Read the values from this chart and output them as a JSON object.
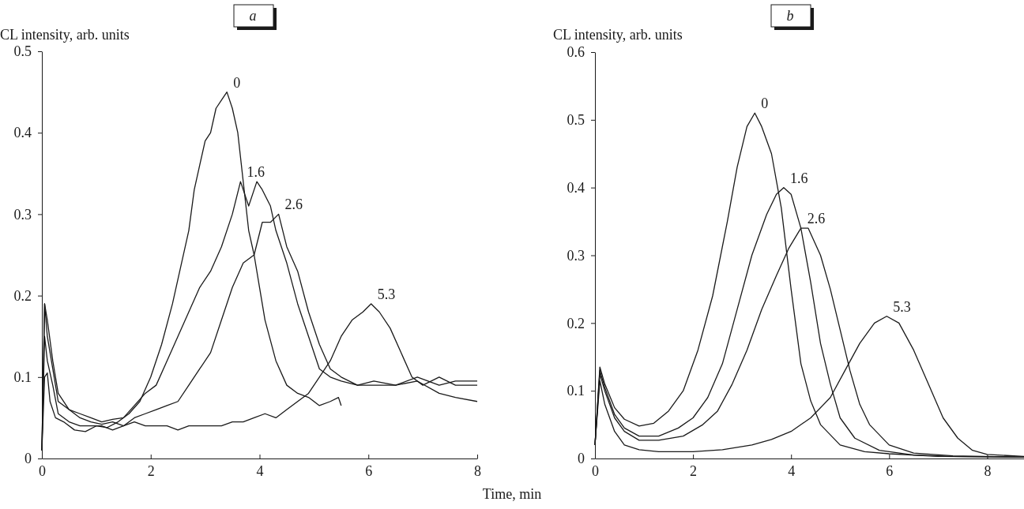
{
  "chart_data": [
    {
      "type": "line",
      "title": "a",
      "ylabel": "CL intensity, arb. units",
      "xlabel": "Time, min",
      "xlim": [
        0,
        8
      ],
      "xticks": [
        0,
        2,
        4,
        6,
        8
      ],
      "ylim": [
        0,
        0.5
      ],
      "yticks": [
        0,
        0.1,
        0.2,
        0.3,
        0.4,
        0.5
      ],
      "grid": false,
      "marker": "none",
      "line_style": "solid",
      "series": [
        {
          "name": "0",
          "color": "#1a1a1a",
          "x": [
            0,
            0.05,
            0.1,
            0.15,
            0.25,
            0.4,
            0.6,
            0.8,
            1.0,
            1.2,
            1.4,
            1.6,
            1.8,
            2.0,
            2.2,
            2.4,
            2.5,
            2.7,
            2.8,
            2.9,
            3.0,
            3.1,
            3.2,
            3.3,
            3.4,
            3.5,
            3.6,
            3.7,
            3.8,
            3.9,
            4.0,
            4.1,
            4.3,
            4.5,
            4.7,
            4.9,
            5.1,
            5.3,
            5.45,
            5.5
          ],
          "values": [
            0.01,
            0.1,
            0.105,
            0.07,
            0.05,
            0.045,
            0.035,
            0.033,
            0.04,
            0.038,
            0.045,
            0.055,
            0.07,
            0.1,
            0.14,
            0.19,
            0.22,
            0.28,
            0.33,
            0.36,
            0.39,
            0.4,
            0.43,
            0.44,
            0.45,
            0.43,
            0.4,
            0.34,
            0.28,
            0.25,
            0.21,
            0.17,
            0.12,
            0.09,
            0.08,
            0.075,
            0.065,
            0.07,
            0.075,
            0.065
          ]
        },
        {
          "name": "1.6",
          "color": "#1a1a1a",
          "x": [
            0,
            0.05,
            0.1,
            0.2,
            0.3,
            0.5,
            0.7,
            0.9,
            1.1,
            1.3,
            1.5,
            1.7,
            1.9,
            2.1,
            2.3,
            2.5,
            2.7,
            2.9,
            3.1,
            3.3,
            3.5,
            3.65,
            3.8,
            3.95,
            4.05,
            4.2,
            4.3,
            4.5,
            4.7,
            4.9,
            5.1,
            5.3,
            5.5,
            5.8,
            6.1,
            6.5,
            6.9,
            7.3,
            7.6,
            8.0
          ],
          "values": [
            0.01,
            0.19,
            0.17,
            0.12,
            0.08,
            0.06,
            0.055,
            0.05,
            0.045,
            0.048,
            0.05,
            0.065,
            0.08,
            0.09,
            0.12,
            0.15,
            0.18,
            0.21,
            0.23,
            0.26,
            0.3,
            0.34,
            0.31,
            0.34,
            0.33,
            0.31,
            0.28,
            0.24,
            0.19,
            0.15,
            0.11,
            0.1,
            0.095,
            0.09,
            0.095,
            0.09,
            0.095,
            0.08,
            0.075,
            0.07
          ]
        },
        {
          "name": "2.6",
          "color": "#1a1a1a",
          "x": [
            0,
            0.05,
            0.1,
            0.2,
            0.3,
            0.5,
            0.7,
            0.9,
            1.1,
            1.3,
            1.5,
            1.7,
            1.9,
            2.1,
            2.3,
            2.5,
            2.7,
            2.9,
            3.1,
            3.3,
            3.5,
            3.7,
            3.9,
            4.05,
            4.2,
            4.35,
            4.5,
            4.7,
            4.9,
            5.1,
            5.3,
            5.5,
            5.8,
            6.1,
            6.5,
            6.9,
            7.3,
            7.6,
            8.0
          ],
          "values": [
            0.01,
            0.19,
            0.15,
            0.11,
            0.07,
            0.06,
            0.05,
            0.045,
            0.042,
            0.045,
            0.04,
            0.05,
            0.055,
            0.06,
            0.065,
            0.07,
            0.09,
            0.11,
            0.13,
            0.17,
            0.21,
            0.24,
            0.25,
            0.29,
            0.29,
            0.3,
            0.26,
            0.23,
            0.18,
            0.14,
            0.11,
            0.1,
            0.09,
            0.09,
            0.09,
            0.1,
            0.09,
            0.095,
            0.095
          ]
        },
        {
          "name": "5.3",
          "color": "#1a1a1a",
          "x": [
            0,
            0.05,
            0.1,
            0.2,
            0.3,
            0.5,
            0.7,
            0.9,
            1.1,
            1.3,
            1.5,
            1.7,
            1.9,
            2.1,
            2.3,
            2.5,
            2.7,
            2.9,
            3.1,
            3.3,
            3.5,
            3.7,
            3.9,
            4.1,
            4.3,
            4.5,
            4.7,
            4.9,
            5.1,
            5.3,
            5.5,
            5.7,
            5.9,
            6.05,
            6.2,
            6.4,
            6.6,
            6.8,
            7.0,
            7.3,
            7.6,
            8.0
          ],
          "values": [
            0.01,
            0.15,
            0.12,
            0.09,
            0.055,
            0.045,
            0.04,
            0.04,
            0.04,
            0.035,
            0.04,
            0.045,
            0.04,
            0.04,
            0.04,
            0.035,
            0.04,
            0.04,
            0.04,
            0.04,
            0.045,
            0.045,
            0.05,
            0.055,
            0.05,
            0.06,
            0.07,
            0.08,
            0.1,
            0.12,
            0.15,
            0.17,
            0.18,
            0.19,
            0.18,
            0.16,
            0.13,
            0.1,
            0.09,
            0.1,
            0.09,
            0.09
          ]
        }
      ]
    },
    {
      "type": "line",
      "title": "b",
      "ylabel": "CL intensity, arb. units",
      "xlim": [
        0,
        8.75
      ],
      "xticks": [
        0,
        2,
        4,
        6,
        8
      ],
      "ylim": [
        0,
        0.6
      ],
      "yticks": [
        0,
        0.1,
        0.2,
        0.3,
        0.4,
        0.5,
        0.6
      ],
      "grid": false,
      "marker": "none",
      "line_style": "solid",
      "series": [
        {
          "name": "0",
          "color": "#1a1a1a",
          "x": [
            0,
            0.1,
            0.2,
            0.4,
            0.6,
            0.9,
            1.2,
            1.5,
            1.8,
            2.1,
            2.4,
            2.7,
            2.9,
            3.1,
            3.26,
            3.4,
            3.6,
            3.8,
            4.0,
            4.2,
            4.4,
            4.6,
            5.0,
            5.5,
            6,
            7,
            8.75
          ],
          "values": [
            0.02,
            0.135,
            0.11,
            0.075,
            0.058,
            0.048,
            0.052,
            0.07,
            0.1,
            0.16,
            0.24,
            0.35,
            0.43,
            0.49,
            0.51,
            0.49,
            0.45,
            0.37,
            0.25,
            0.14,
            0.085,
            0.05,
            0.02,
            0.01,
            0.007,
            0.003,
            0.002
          ]
        },
        {
          "name": "1.6",
          "color": "#1a1a1a",
          "x": [
            0,
            0.1,
            0.2,
            0.4,
            0.6,
            0.9,
            1.3,
            1.7,
            2.0,
            2.3,
            2.6,
            2.9,
            3.2,
            3.5,
            3.7,
            3.85,
            4.0,
            4.2,
            4.4,
            4.6,
            4.8,
            5.0,
            5.3,
            5.8,
            6.5,
            7.3,
            8.75
          ],
          "values": [
            0.02,
            0.13,
            0.105,
            0.065,
            0.045,
            0.033,
            0.033,
            0.045,
            0.06,
            0.09,
            0.14,
            0.22,
            0.3,
            0.36,
            0.39,
            0.4,
            0.39,
            0.34,
            0.26,
            0.17,
            0.11,
            0.06,
            0.03,
            0.012,
            0.005,
            0.003,
            0.002
          ]
        },
        {
          "name": "2.6",
          "color": "#1a1a1a",
          "x": [
            0,
            0.1,
            0.2,
            0.4,
            0.6,
            0.9,
            1.3,
            1.8,
            2.2,
            2.5,
            2.8,
            3.1,
            3.4,
            3.7,
            3.95,
            4.2,
            4.35,
            4.6,
            4.8,
            5.0,
            5.2,
            5.4,
            5.6,
            6.0,
            6.5,
            7.3,
            8.75
          ],
          "values": [
            0.02,
            0.125,
            0.1,
            0.06,
            0.04,
            0.027,
            0.027,
            0.033,
            0.05,
            0.07,
            0.11,
            0.16,
            0.22,
            0.27,
            0.31,
            0.34,
            0.34,
            0.3,
            0.25,
            0.19,
            0.13,
            0.08,
            0.05,
            0.02,
            0.008,
            0.004,
            0.002
          ]
        },
        {
          "name": "5.3",
          "color": "#1a1a1a",
          "x": [
            0,
            0.1,
            0.2,
            0.4,
            0.6,
            0.9,
            1.3,
            2,
            2.6,
            3.2,
            3.6,
            4.0,
            4.4,
            4.8,
            5.1,
            5.4,
            5.7,
            5.95,
            6.2,
            6.5,
            6.8,
            7.1,
            7.4,
            7.7,
            8.0,
            8.75
          ],
          "values": [
            0.02,
            0.115,
            0.08,
            0.04,
            0.02,
            0.013,
            0.01,
            0.01,
            0.013,
            0.02,
            0.028,
            0.04,
            0.06,
            0.09,
            0.13,
            0.17,
            0.2,
            0.21,
            0.2,
            0.16,
            0.11,
            0.06,
            0.03,
            0.012,
            0.006,
            0.003
          ]
        }
      ]
    }
  ]
}
